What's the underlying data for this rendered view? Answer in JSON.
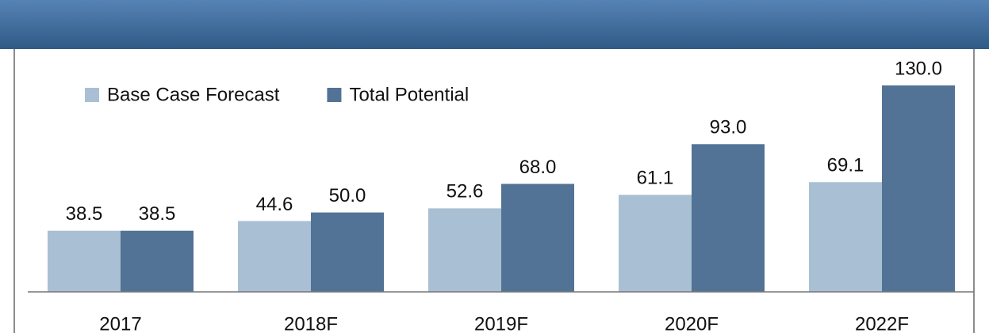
{
  "chart_data": {
    "type": "bar",
    "categories": [
      "2017",
      "2018F",
      "2019F",
      "2020F",
      "2022F"
    ],
    "series": [
      {
        "name": "Base Case Forecast",
        "color": "#a9bfd3",
        "values": [
          38.5,
          44.6,
          52.6,
          61.1,
          69.1
        ],
        "value_labels": [
          "38.5",
          "44.6",
          "52.6",
          "61.1",
          "69.1"
        ]
      },
      {
        "name": "Total Potential",
        "color": "#527396",
        "values": [
          38.5,
          50.0,
          68.0,
          93.0,
          130.0
        ],
        "value_labels": [
          "38.5",
          "50.0",
          "68.0",
          "93.0",
          "130.0"
        ]
      }
    ],
    "ylim": [
      0,
      130
    ],
    "legend": "top-left"
  }
}
